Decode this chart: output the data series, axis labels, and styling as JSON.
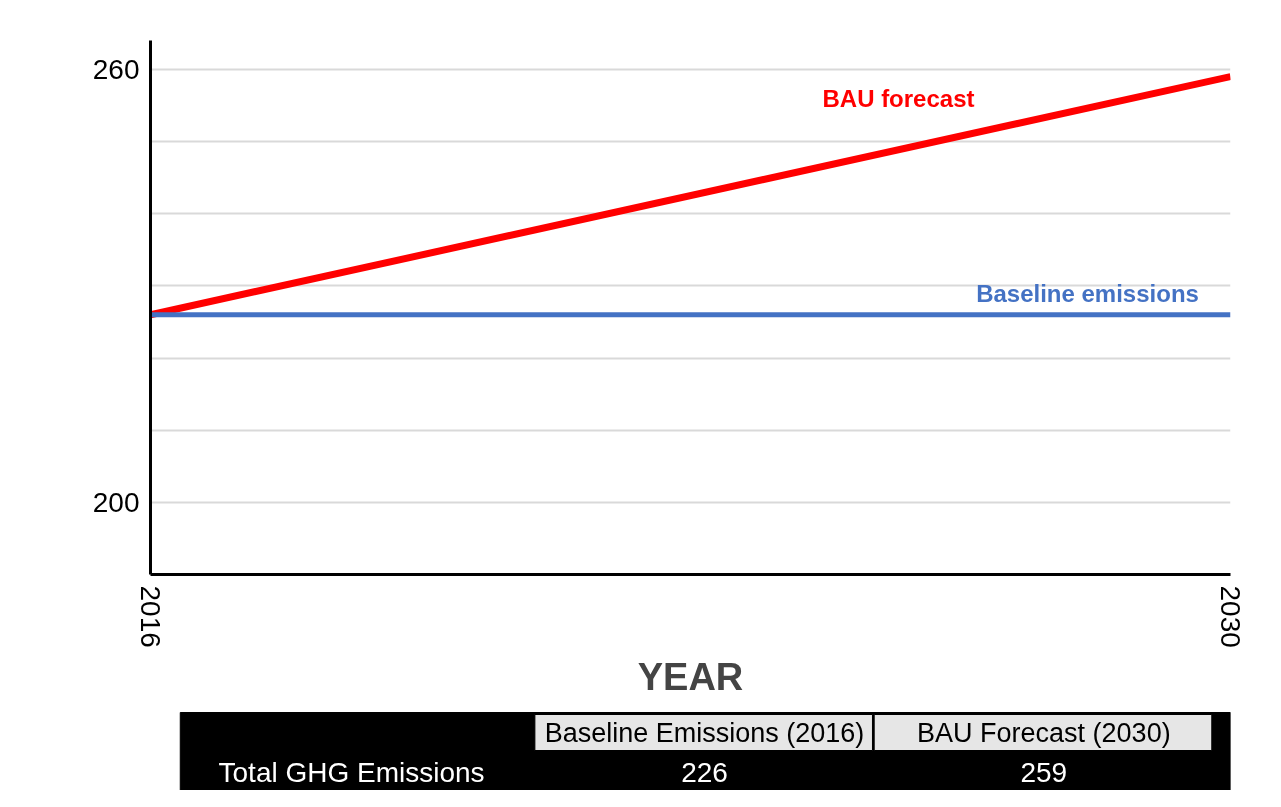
{
  "chart_data": {
    "type": "line",
    "xlabel": "YEAR",
    "x": [
      2016,
      2030
    ],
    "xlim": [
      2016,
      2030
    ],
    "xticks": [
      2016,
      2030
    ],
    "ylim": [
      190,
      264
    ],
    "yticks": [
      200,
      {
        "value": 210,
        "label": null
      },
      {
        "value": 220,
        "label": null
      },
      {
        "value": 230,
        "label": null
      },
      {
        "value": 240,
        "label": null
      },
      {
        "value": 250,
        "label": null
      },
      260
    ],
    "grid": "y",
    "marker": "none",
    "line_style": "solid",
    "series": [
      {
        "name": "BAU forecast",
        "color": "#ff0000",
        "values": [
          226,
          259
        ]
      },
      {
        "name": "Baseline emissions",
        "color": "#4472c4",
        "values": [
          226,
          226
        ]
      }
    ],
    "annotations": [
      "Total GHG Emissions",
      "Baseline Emissions (2016)",
      "BAU Forecast (2030)",
      "226",
      "259"
    ]
  }
}
